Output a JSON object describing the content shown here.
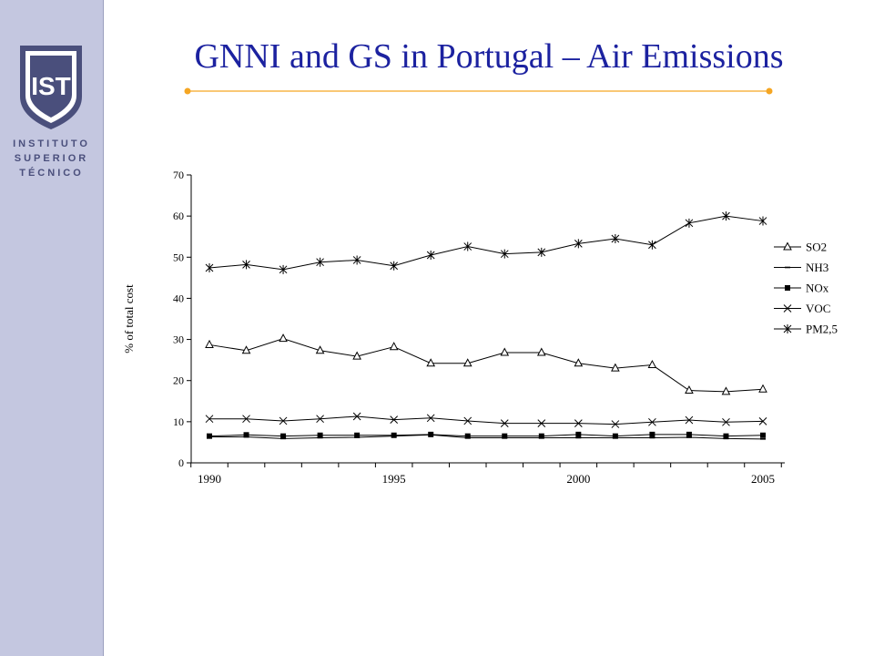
{
  "slide": {
    "title": "GNNI and GS in Portugal – Air Emissions",
    "institution_lines": [
      "INSTITUTO",
      "SUPERIOR",
      "TÉCNICO"
    ],
    "logo_text": "IST",
    "accent_color": "#f5a623",
    "title_color": "#1c22a0",
    "sidebar_color": "#c4c7e0"
  },
  "chart_data": {
    "type": "line",
    "title": "",
    "xlabel": "",
    "ylabel": "% of total cost",
    "x": [
      1990,
      1991,
      1992,
      1993,
      1994,
      1995,
      1996,
      1997,
      1998,
      1999,
      2000,
      2001,
      2002,
      2003,
      2004,
      2005
    ],
    "xticks": [
      "1990",
      "1995",
      "2000",
      "2005"
    ],
    "yticks": [
      "0",
      "10",
      "20",
      "30",
      "40",
      "50",
      "60",
      "70"
    ],
    "ylim": [
      0,
      70
    ],
    "legend_position": "right",
    "grid": false,
    "series": [
      {
        "name": "SO2",
        "marker": "triangle",
        "values": [
          28.7,
          27.3,
          30.2,
          27.3,
          25.9,
          28.2,
          24.2,
          24.2,
          26.8,
          26.8,
          24.2,
          23.0,
          23.8,
          17.6,
          17.3,
          17.9
        ]
      },
      {
        "name": "NH3",
        "marker": "dash",
        "values": [
          6.3,
          6.3,
          5.9,
          6.1,
          6.2,
          6.5,
          6.8,
          6.1,
          6.1,
          6.1,
          6.1,
          6.1,
          6.1,
          6.2,
          5.9,
          5.8
        ]
      },
      {
        "name": "NOx",
        "marker": "square",
        "values": [
          6.5,
          6.8,
          6.5,
          6.7,
          6.7,
          6.7,
          6.9,
          6.5,
          6.5,
          6.5,
          6.9,
          6.5,
          6.9,
          6.9,
          6.5,
          6.7
        ]
      },
      {
        "name": "VOC",
        "marker": "x",
        "values": [
          10.7,
          10.7,
          10.2,
          10.7,
          11.3,
          10.5,
          10.9,
          10.2,
          9.6,
          9.6,
          9.6,
          9.4,
          9.9,
          10.4,
          9.9,
          10.1
        ]
      },
      {
        "name": "PM2,5",
        "marker": "star",
        "values": [
          47.4,
          48.2,
          47.0,
          48.8,
          49.3,
          47.9,
          50.5,
          52.6,
          50.8,
          51.2,
          53.3,
          54.5,
          53.0,
          58.3,
          60.0,
          58.8
        ]
      }
    ]
  }
}
